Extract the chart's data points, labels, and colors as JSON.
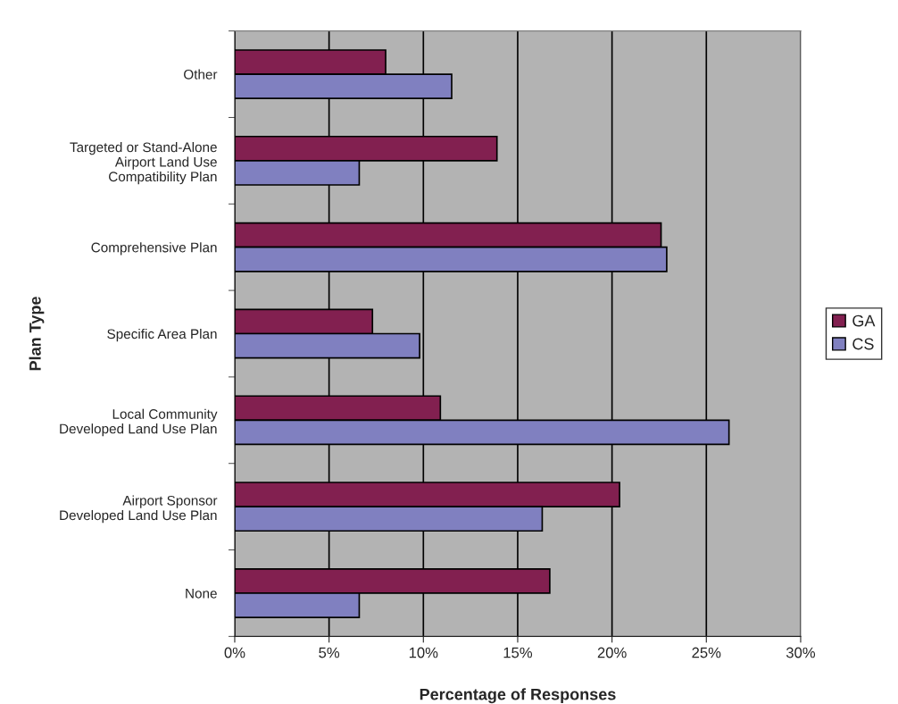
{
  "chart_data": {
    "type": "bar",
    "orientation": "horizontal",
    "xlabel": "Percentage of Responses",
    "ylabel": "Plan Type",
    "categories": [
      "Other",
      "Targeted or Stand-Alone\nAirport Land Use\nCompatibility Plan",
      "Comprehensive Plan",
      "Specific Area Plan",
      "Local Community\nDeveloped Land Use Plan",
      "Airport Sponsor\nDeveloped Land Use Plan",
      "None"
    ],
    "series": [
      {
        "name": "GA",
        "color": "#822050",
        "values": [
          8.0,
          13.9,
          22.6,
          7.3,
          10.9,
          20.4,
          16.7
        ]
      },
      {
        "name": "CS",
        "color": "#8080c0",
        "values": [
          11.5,
          6.6,
          22.9,
          9.8,
          26.2,
          16.3,
          6.6
        ]
      }
    ],
    "xlim": [
      0,
      30
    ],
    "xticks": [
      {
        "value": 0,
        "label": "0%"
      },
      {
        "value": 5,
        "label": "5%"
      },
      {
        "value": 10,
        "label": "10%"
      },
      {
        "value": 15,
        "label": "15%"
      },
      {
        "value": 20,
        "label": "20%"
      },
      {
        "value": 25,
        "label": "25%"
      },
      {
        "value": 30,
        "label": "30%"
      }
    ],
    "grid": "x",
    "legend": "right"
  }
}
